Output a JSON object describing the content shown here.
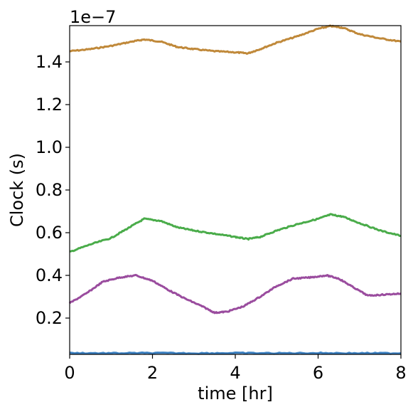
{
  "chart_data": {
    "type": "line",
    "title": "",
    "xlabel": "time [hr]",
    "ylabel": "Clock (s)",
    "y_offset_label": "1e−7",
    "xlim": [
      0,
      8
    ],
    "ylim": [
      0.03,
      1.57
    ],
    "y_scale": 1e-07,
    "grid": false,
    "legend": "none",
    "xticks": [
      0,
      2,
      4,
      6,
      8
    ],
    "xtick_labels": [
      "0",
      "2",
      "4",
      "6",
      "8"
    ],
    "yticks": [
      0.2,
      0.4,
      0.6,
      0.8,
      1.0,
      1.2,
      1.4
    ],
    "ytick_labels": [
      "0.2",
      "0.4",
      "0.6",
      "0.8",
      "1.0",
      "1.2",
      "1.4"
    ],
    "series": [
      {
        "color": "#c0893a",
        "x": [
          0,
          0.5,
          1.0,
          1.5,
          1.8,
          2.2,
          2.6,
          3.0,
          3.5,
          4.0,
          4.3,
          4.6,
          5.0,
          5.5,
          6.0,
          6.3,
          6.6,
          7.0,
          7.5,
          8.0
        ],
        "y": [
          1.45,
          1.46,
          1.475,
          1.495,
          1.505,
          1.495,
          1.47,
          1.46,
          1.45,
          1.445,
          1.44,
          1.46,
          1.49,
          1.52,
          1.555,
          1.568,
          1.56,
          1.53,
          1.51,
          1.495
        ]
      },
      {
        "color": "#4aac4a",
        "x": [
          0,
          0.5,
          1.0,
          1.4,
          1.8,
          2.2,
          2.6,
          3.0,
          3.5,
          4.0,
          4.3,
          4.6,
          5.0,
          5.5,
          6.0,
          6.3,
          6.6,
          7.0,
          7.5,
          8.0
        ],
        "y": [
          0.51,
          0.545,
          0.575,
          0.62,
          0.665,
          0.655,
          0.625,
          0.61,
          0.595,
          0.58,
          0.57,
          0.58,
          0.61,
          0.64,
          0.665,
          0.685,
          0.675,
          0.645,
          0.61,
          0.585
        ]
      },
      {
        "color": "#9a4c9e",
        "x": [
          0,
          0.4,
          0.8,
          1.2,
          1.6,
          2.0,
          2.4,
          2.8,
          3.2,
          3.5,
          3.8,
          4.2,
          4.6,
          5.0,
          5.4,
          5.8,
          6.2,
          6.5,
          6.8,
          7.2,
          7.6,
          8.0
        ],
        "y": [
          0.27,
          0.315,
          0.37,
          0.39,
          0.4,
          0.375,
          0.33,
          0.29,
          0.255,
          0.225,
          0.23,
          0.255,
          0.3,
          0.35,
          0.385,
          0.39,
          0.4,
          0.385,
          0.35,
          0.305,
          0.31,
          0.315
        ]
      },
      {
        "color": "#3a7fc0",
        "x": [
          0,
          1,
          2,
          3,
          4,
          5,
          6,
          7,
          8
        ],
        "y": [
          0.036,
          0.035,
          0.036,
          0.035,
          0.036,
          0.035,
          0.036,
          0.035,
          0.035
        ]
      }
    ]
  }
}
